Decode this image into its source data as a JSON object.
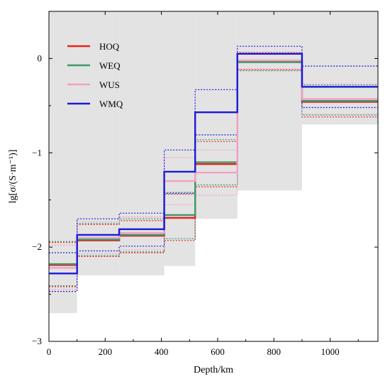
{
  "chart_data": {
    "type": "line",
    "subtype": "step",
    "title": "",
    "xlabel": "Depth/km",
    "ylabel": "lg[σ/(S·m⁻¹)]",
    "xlim": [
      0,
      1170
    ],
    "ylim": [
      -3,
      0.5
    ],
    "x_ticks": [
      0,
      200,
      400,
      600,
      800,
      1000
    ],
    "y_ticks": [
      -3,
      -2,
      -1,
      0
    ],
    "grid": false,
    "legend_position": "top-left",
    "layer_boundaries": [
      0,
      100,
      250,
      410,
      520,
      670,
      900,
      1170
    ],
    "background_bounds": {
      "description": "grey shaded range of the conductivity model",
      "color": "#e3e3e3",
      "lower": [
        -2.7,
        -2.3,
        -2.3,
        -2.2,
        -1.7,
        -1.4,
        -0.7
      ],
      "upper": [
        0.5,
        0.5,
        0.5,
        0.5,
        0.5,
        0.5,
        0.5
      ]
    },
    "series": [
      {
        "name": "HOQ",
        "color": "#e8221c",
        "values": [
          -2.19,
          -1.93,
          -1.88,
          -1.69,
          -1.12,
          -0.03,
          -0.46
        ],
        "upper": [
          -1.95,
          -1.76,
          -1.72,
          -1.44,
          -0.88,
          0.06,
          -0.3
        ],
        "lower": [
          -2.42,
          -2.1,
          -2.06,
          -1.93,
          -1.36,
          -0.12,
          -0.62
        ]
      },
      {
        "name": "WEQ",
        "color": "#3d9a6b",
        "values": [
          -2.18,
          -1.92,
          -1.87,
          -1.66,
          -1.1,
          -0.04,
          -0.45
        ],
        "upper": [
          -1.94,
          -1.75,
          -1.7,
          -1.42,
          -0.86,
          0.05,
          -0.28
        ],
        "lower": [
          -2.41,
          -2.09,
          -2.05,
          -1.91,
          -1.34,
          -0.13,
          -0.6
        ]
      },
      {
        "name": "WUS",
        "color": "#f4a0c6",
        "values": [
          -2.22,
          -1.9,
          -1.85,
          -1.3,
          -1.21,
          -0.02,
          -0.43
        ],
        "upper": [
          -1.98,
          -1.73,
          -1.68,
          -1.05,
          -0.97,
          0.07,
          -0.27
        ],
        "lower": [
          -2.45,
          -2.07,
          -2.03,
          -1.55,
          -1.45,
          -0.11,
          -0.59
        ]
      },
      {
        "name": "WMQ",
        "color": "#1a1adb",
        "values": [
          -2.28,
          -1.87,
          -1.81,
          -1.2,
          -0.57,
          0.05,
          -0.3
        ],
        "upper": [
          -2.06,
          -1.7,
          -1.64,
          -0.97,
          -0.33,
          0.13,
          -0.08
        ],
        "lower": [
          -2.47,
          -2.04,
          -1.99,
          -1.43,
          -0.81,
          -0.03,
          -0.52
        ]
      }
    ]
  }
}
